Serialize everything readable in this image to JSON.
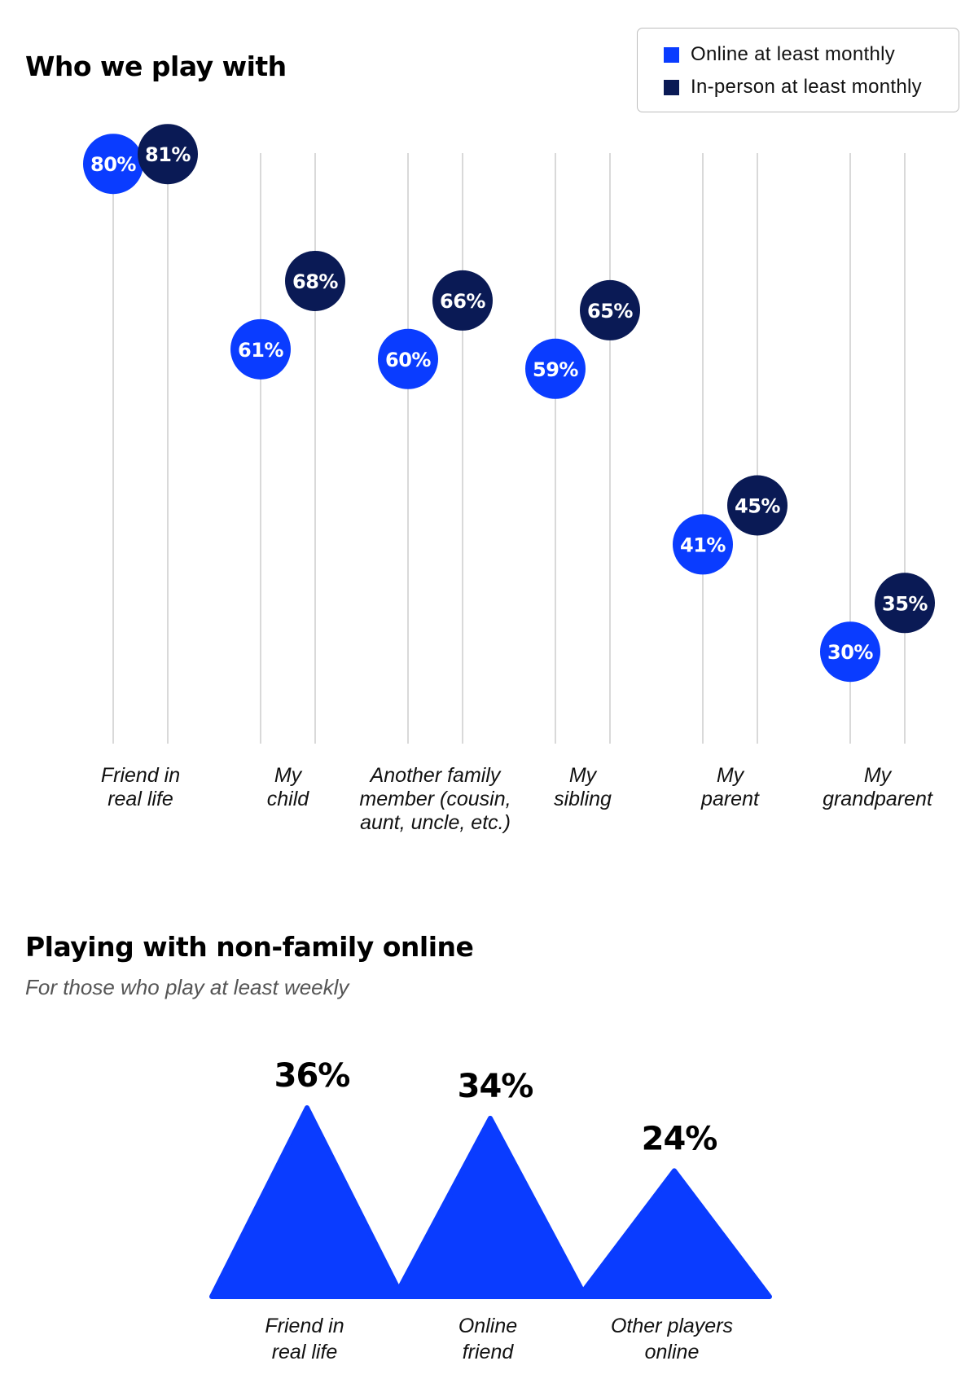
{
  "colors": {
    "online": "#0a3cff",
    "in_person": "#0a1a55",
    "gridline": "#d9d9d9"
  },
  "chart_data": [
    {
      "type": "scatter",
      "title": "Who we play with",
      "categories": [
        [
          "Friend in",
          "real life"
        ],
        [
          "My",
          "child"
        ],
        [
          "Another family",
          "member (cousin,",
          "aunt, uncle, etc.)"
        ],
        [
          "My",
          "sibling"
        ],
        [
          "My",
          "parent"
        ],
        [
          "My",
          "grandparent"
        ]
      ],
      "series": [
        {
          "name": "Online at least monthly",
          "values": [
            80,
            61,
            60,
            59,
            41,
            30
          ],
          "labels": [
            "80%",
            "61%",
            "60%",
            "59%",
            "41%",
            "30%"
          ]
        },
        {
          "name": "In-person at least monthly",
          "values": [
            81,
            68,
            66,
            65,
            45,
            35
          ],
          "labels": [
            "81%",
            "68%",
            "66%",
            "65%",
            "45%",
            "35%"
          ]
        }
      ],
      "ylim": [
        0,
        100
      ],
      "grid": true,
      "legend": "top-right"
    },
    {
      "type": "area",
      "title": "Playing with non-family online",
      "subtitle": "For those who play at least weekly",
      "categories": [
        [
          "Friend in",
          "real life"
        ],
        [
          "Online",
          "friend"
        ],
        [
          "Other players",
          "online"
        ]
      ],
      "values": [
        36,
        34,
        24
      ],
      "labels": [
        "36%",
        "34%",
        "24%"
      ],
      "ylim": [
        0,
        36
      ]
    }
  ]
}
